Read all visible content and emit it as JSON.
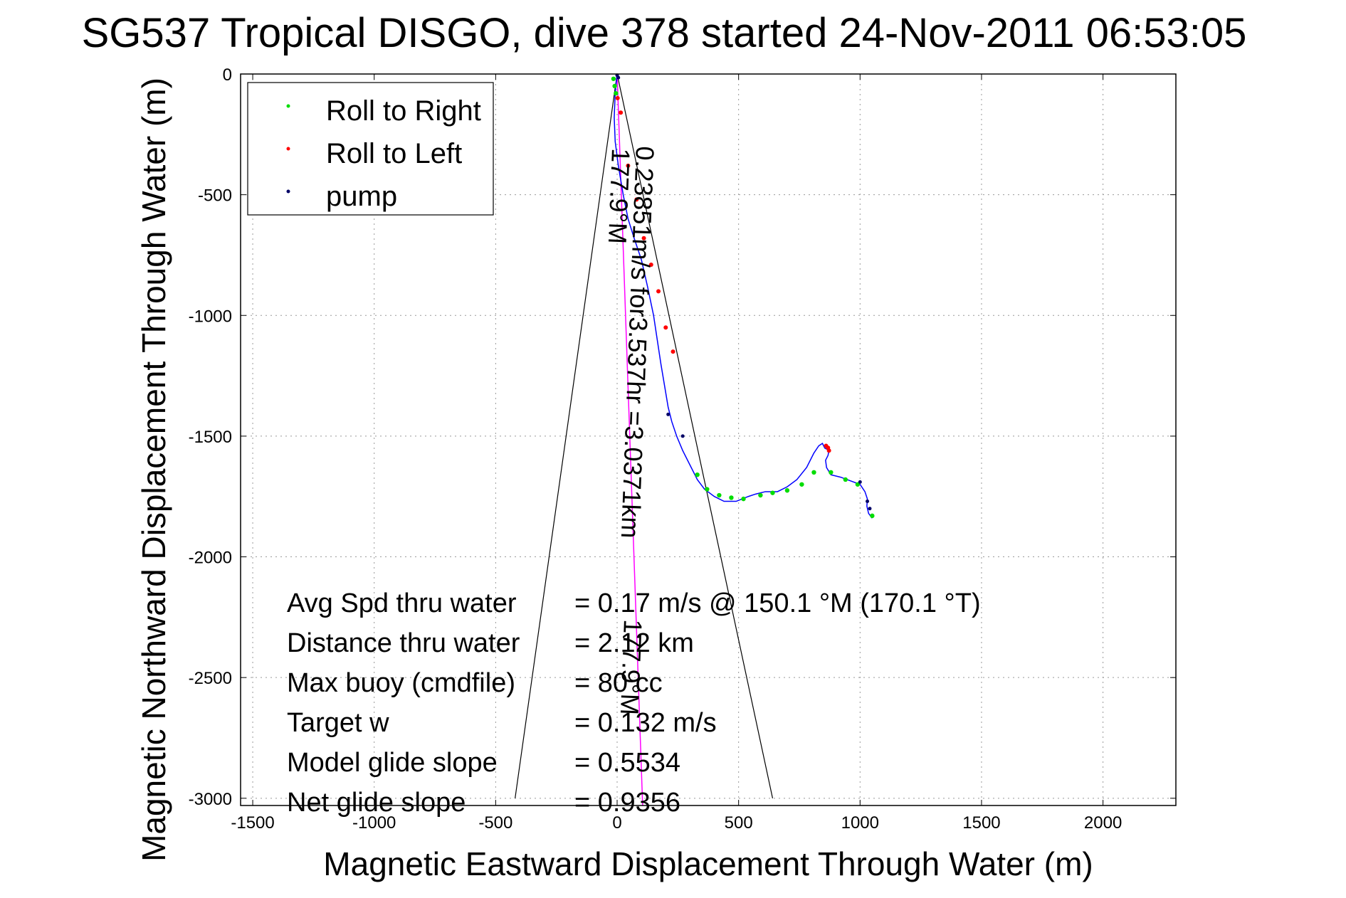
{
  "chart_data": {
    "type": "line",
    "title": "SG537 Tropical DISGO, dive 378 started 24-Nov-2011 06:53:05",
    "xlabel": "Magnetic Eastward Displacement Through Water (m)",
    "ylabel": "Magnetic Northward Displacement Through Water (m)",
    "xlim": [
      -1550,
      2300
    ],
    "ylim": [
      -3030,
      0
    ],
    "xticks": [
      -1500,
      -1000,
      -500,
      0,
      500,
      1000,
      1500,
      2000
    ],
    "yticks": [
      0,
      -500,
      -1000,
      -1500,
      -2000,
      -2500,
      -3000
    ],
    "grid": true,
    "legend": {
      "placement": "top-left",
      "entries": [
        {
          "label": "Roll to Right",
          "color": "#00dd00"
        },
        {
          "label": "Roll to Left",
          "color": "#ff0000"
        },
        {
          "label": "pump",
          "color": "#000066"
        }
      ]
    },
    "track": {
      "color": "#0000ff",
      "x": [
        0,
        -8,
        -12,
        -8,
        5,
        25,
        45,
        70,
        100,
        125,
        150,
        165,
        180,
        195,
        210,
        225,
        245,
        270,
        300,
        330,
        360,
        400,
        440,
        490,
        540,
        570,
        610,
        660,
        700,
        740,
        780,
        810,
        830,
        845,
        850,
        855,
        865,
        872,
        868,
        858,
        862,
        880,
        920,
        960,
        1000,
        1020,
        1030,
        1028,
        1035,
        1050
      ],
      "y": [
        0,
        -80,
        -180,
        -280,
        -380,
        -500,
        -600,
        -680,
        -770,
        -880,
        -1000,
        -1100,
        -1200,
        -1290,
        -1380,
        -1440,
        -1500,
        -1560,
        -1620,
        -1680,
        -1720,
        -1750,
        -1770,
        -1770,
        -1750,
        -1740,
        -1730,
        -1730,
        -1710,
        -1680,
        -1630,
        -1570,
        -1540,
        -1530,
        -1540,
        -1550,
        -1555,
        -1560,
        -1580,
        -1600,
        -1630,
        -1660,
        -1670,
        -1685,
        -1700,
        -1730,
        -1760,
        -1790,
        -1820,
        -1840
      ]
    },
    "roll_right_points": {
      "color": "#00dd00",
      "x": [
        -15,
        -10,
        -5,
        330,
        370,
        420,
        470,
        520,
        590,
        640,
        700,
        760,
        810,
        880,
        940,
        990,
        1050
      ],
      "y": [
        -20,
        -50,
        -80,
        -1660,
        -1720,
        -1745,
        -1755,
        -1760,
        -1745,
        -1735,
        -1725,
        -1700,
        -1650,
        -1650,
        -1680,
        -1700,
        -1830
      ]
    },
    "roll_left_points": {
      "color": "#ff0000",
      "x": [
        2,
        15,
        45,
        80,
        110,
        140,
        170,
        200,
        230,
        860,
        868,
        872
      ],
      "y": [
        -100,
        -160,
        -380,
        -520,
        -680,
        -790,
        -900,
        -1050,
        -1150,
        -1540,
        -1548,
        -1560
      ]
    },
    "pump_points": {
      "color": "#000066",
      "x": [
        0,
        5,
        210,
        270,
        1000,
        1030,
        1040
      ],
      "y": [
        -5,
        -15,
        -1410,
        -1500,
        -1690,
        -1770,
        -1800
      ]
    },
    "cone_lines": {
      "color": "#000000",
      "apex": [
        0,
        0
      ],
      "ends": [
        [
          -420,
          -3000
        ],
        [
          640,
          -3000
        ]
      ]
    },
    "heading_line": {
      "color": "#ff00ff",
      "from": [
        0,
        0
      ],
      "to": [
        105,
        -3030
      ]
    },
    "annotations": {
      "speed_text": "0.23851m/s for3.537hr =3.0371km",
      "left_heading": "177.9°M",
      "current_heading": "177.9°M"
    },
    "stats": [
      {
        "label": "Avg Spd thru water",
        "value": "=  0.17 m/s @ 150.1 °M (170.1 °T)"
      },
      {
        "label": "Distance thru water",
        "value": "=  2.12 km"
      },
      {
        "label": "Max buoy (cmdfile)",
        "value": "= 80 cc"
      },
      {
        "label": "Target w",
        "value": "= 0.132 m/s"
      },
      {
        "label": "Model glide slope",
        "value": "= 0.5534"
      },
      {
        "label": "Net glide slope",
        "value": "= 0.9356"
      }
    ]
  }
}
